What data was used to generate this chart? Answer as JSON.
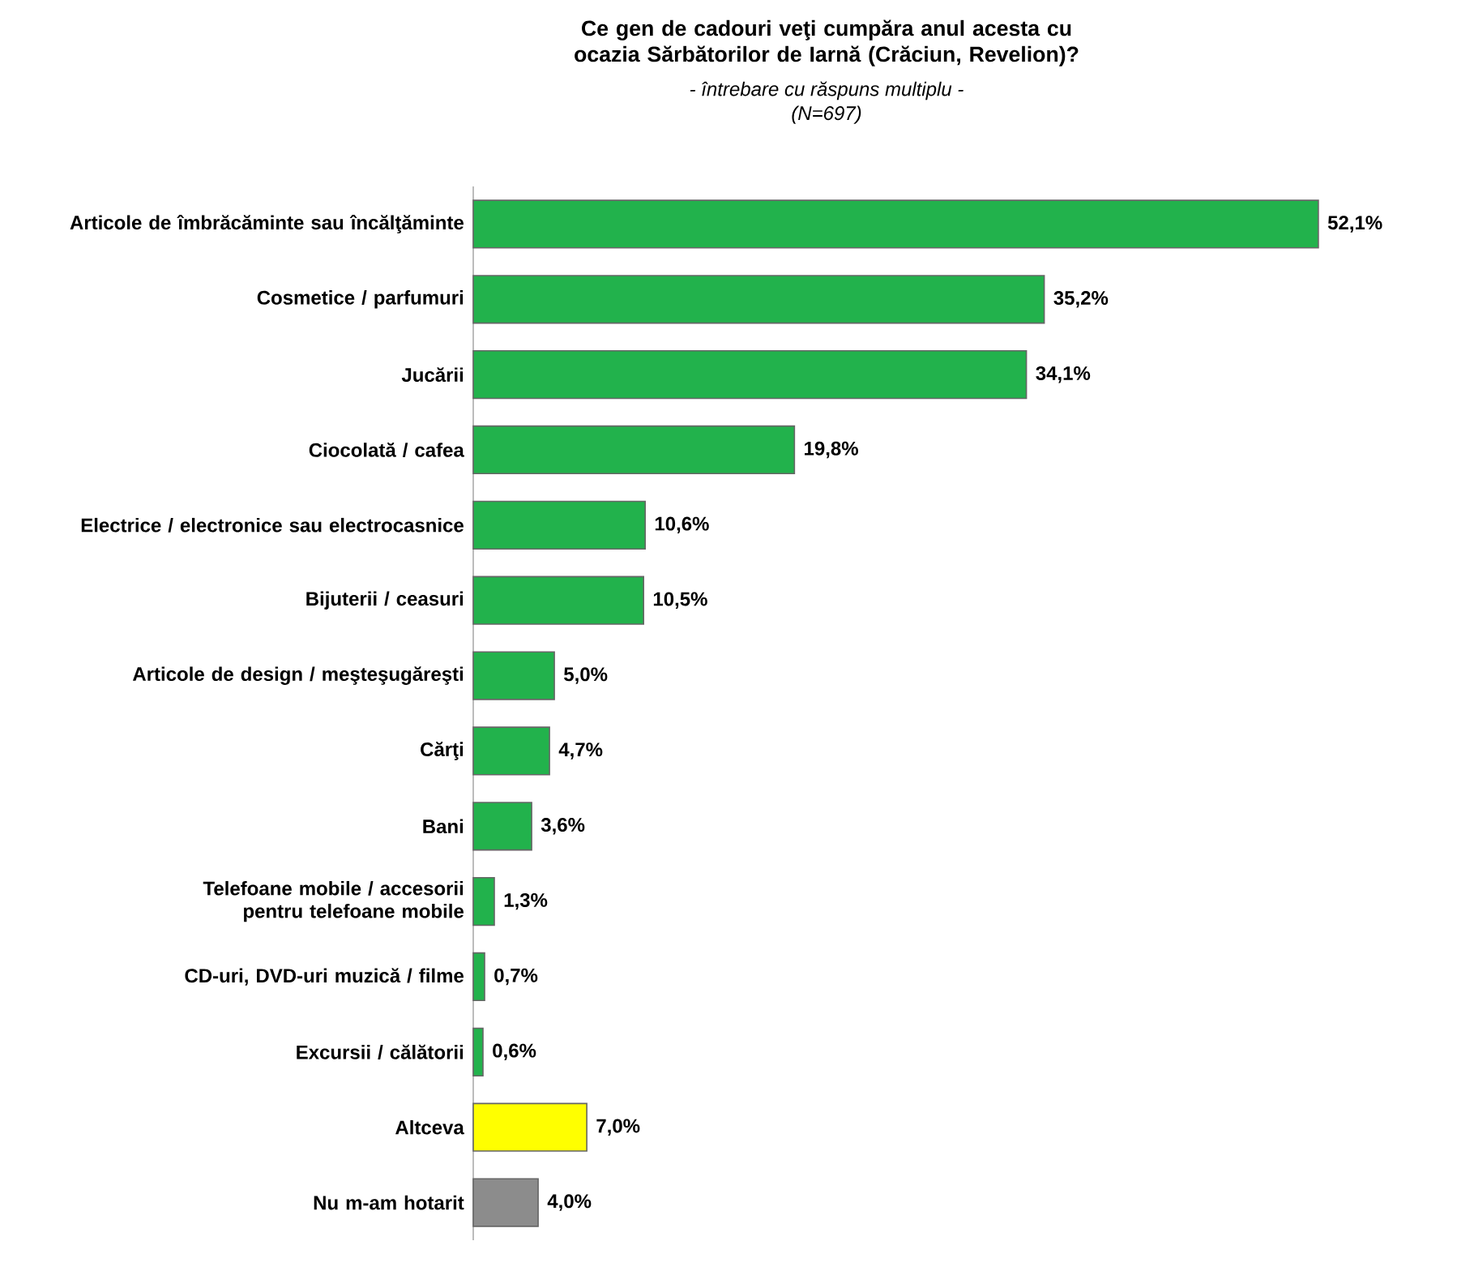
{
  "chart_data": {
    "type": "bar",
    "orientation": "horizontal",
    "title": "Ce gen de cadouri veţi cumpăra anul acesta cu ocazia Sărbătorilor de Iarnă (Crăciun, Revelion)?",
    "subtitle": "- întrebare cu răspuns multiplu -",
    "annotations": [
      "(N=697)"
    ],
    "categories": [
      "Articole de îmbrăcăminte sau încălţăminte",
      "Cosmetice / parfumuri",
      "Jucării",
      "Ciocolată / cafea",
      "Electrice / electronice sau electrocasnice",
      "Bijuterii / ceasuri",
      "Articole de design / meşteşugăreşti",
      "Cărţi",
      "Bani",
      "Telefoane mobile / accesorii pentru telefoane mobile",
      "CD-uri, DVD-uri muzică / filme",
      "Excursii / călătorii",
      "Altceva",
      "Nu m-am hotarit"
    ],
    "values": [
      52.1,
      35.2,
      34.1,
      19.8,
      10.6,
      10.5,
      5.0,
      4.7,
      3.6,
      1.3,
      0.7,
      0.6,
      7.0,
      4.0
    ],
    "value_labels": [
      "52,1%",
      "35,2%",
      "34,1%",
      "19,8%",
      "10,6%",
      "10,5%",
      "5,0%",
      "4,7%",
      "3,6%",
      "1,3%",
      "0,7%",
      "0,6%",
      "7,0%",
      "4,0%"
    ],
    "colors": [
      "#22b24c",
      "#22b24c",
      "#22b24c",
      "#22b24c",
      "#22b24c",
      "#22b24c",
      "#22b24c",
      "#22b24c",
      "#22b24c",
      "#22b24c",
      "#22b24c",
      "#22b24c",
      "#ffff00",
      "#8c8c8c"
    ]
  }
}
